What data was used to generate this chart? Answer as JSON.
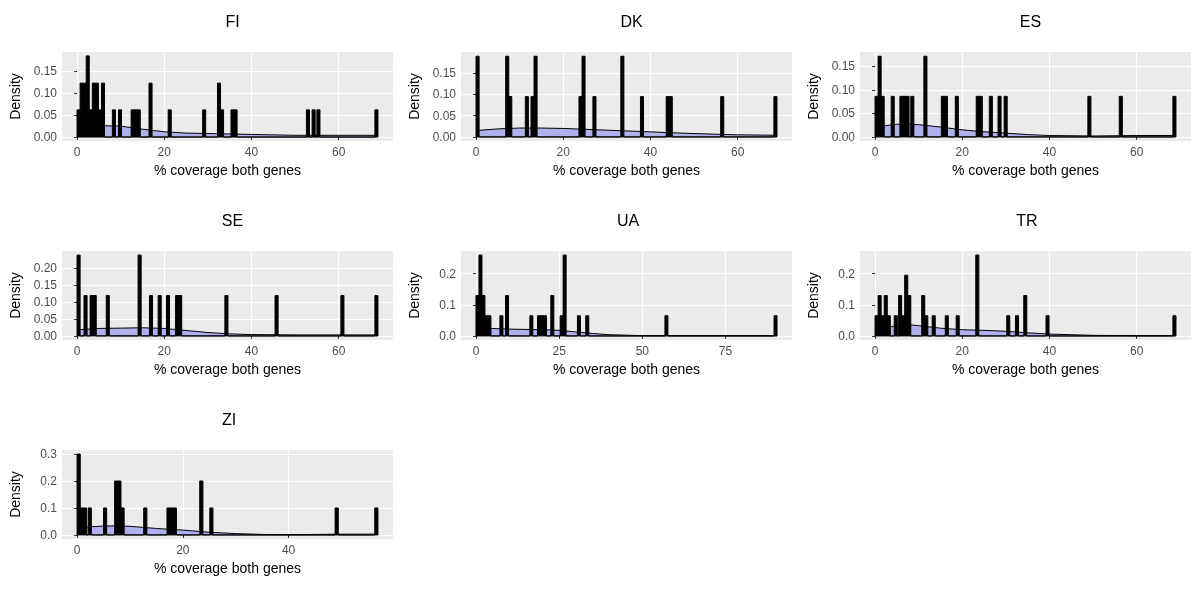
{
  "chart_data": [
    {
      "type": "histogram",
      "title": "FI",
      "xlabel": "% coverage both genes",
      "ylabel": "Density",
      "xlim": [
        -3.45,
        72.45
      ],
      "xticks": [
        0,
        20,
        40,
        60
      ],
      "ylim": [
        -0.009,
        0.194
      ],
      "yticks": [
        {
          "value": 0,
          "label": "0.00"
        },
        {
          "value": 0.05,
          "label": "0.05"
        },
        {
          "value": 0.1,
          "label": "0.10"
        },
        {
          "value": 0.15,
          "label": "0.15"
        }
      ],
      "grid": true,
      "series": [
        {
          "type": "area",
          "color": "#b0b0ec",
          "x": [
            0,
            5,
            10,
            15,
            20,
            25,
            30,
            40,
            50,
            60,
            69
          ],
          "values": [
            0.022,
            0.026,
            0.025,
            0.018,
            0.012,
            0.009,
            0.008,
            0.006,
            0.004,
            0.004,
            0.004
          ]
        },
        {
          "type": "histogram",
          "color": "#000000",
          "bins": [
            0,
            0.7,
            1.4,
            2.1,
            2.8,
            3.5,
            4.2,
            4.9,
            5.6,
            6.3,
            8.1,
            8.8,
            9.5,
            10.2,
            12.4,
            13.1,
            13.8,
            14.5,
            16.5,
            17.2,
            20.9,
            21.6,
            28.8,
            29.5,
            32.2,
            32.9,
            33.6,
            35.3,
            36,
            36.7,
            52.6,
            53.3,
            53.9,
            54.6,
            55,
            55.7,
            68.3,
            69
          ],
          "values": [
            0.062,
            0.123,
            0.123,
            0.185,
            0.062,
            0.123,
            0.123,
            0.062,
            0.123,
            0,
            0.062,
            0,
            0.062,
            0,
            0.062,
            0.062,
            0.062,
            0,
            0.123,
            0,
            0.062,
            0,
            0.062,
            0,
            0.123,
            0.062,
            0,
            0.062,
            0.062,
            0,
            0.062,
            0,
            0.062,
            0,
            0.062,
            0,
            0.062
          ]
        }
      ]
    },
    {
      "type": "histogram",
      "title": "DK",
      "xlabel": "% coverage both genes",
      "ylabel": "Density",
      "xlim": [
        -3.45,
        72.45
      ],
      "xticks": [
        0,
        20,
        40,
        60
      ],
      "ylim": [
        -0.0095,
        0.2
      ],
      "yticks": [
        {
          "value": 0,
          "label": "0.00"
        },
        {
          "value": 0.05,
          "label": "0.05"
        },
        {
          "value": 0.1,
          "label": "0.10"
        },
        {
          "value": 0.15,
          "label": "0.15"
        }
      ],
      "grid": true,
      "series": [
        {
          "type": "area",
          "color": "#b0b0ec",
          "x": [
            0,
            5,
            10,
            15,
            20,
            30,
            40,
            50,
            60,
            69
          ],
          "values": [
            0.015,
            0.019,
            0.021,
            0.021,
            0.02,
            0.016,
            0.012,
            0.008,
            0.005,
            0.004
          ]
        },
        {
          "type": "histogram",
          "color": "#000000",
          "bins": [
            0,
            0.7,
            6.8,
            7.5,
            8.2,
            11.3,
            12,
            12.6,
            13.3,
            14,
            23.6,
            24.3,
            25,
            26.8,
            27.5,
            33.2,
            33.9,
            37.7,
            38.4,
            43.6,
            44.3,
            45,
            56.1,
            56.8,
            68.3,
            69
          ],
          "values": [
            0.19,
            0,
            0.19,
            0.095,
            0,
            0.095,
            0,
            0.095,
            0.19,
            0,
            0.095,
            0.19,
            0,
            0.095,
            0,
            0.19,
            0,
            0.095,
            0,
            0.095,
            0.095,
            0,
            0.095,
            0,
            0.095
          ]
        }
      ]
    },
    {
      "type": "histogram",
      "title": "ES",
      "xlabel": "% coverage both genes",
      "ylabel": "Density",
      "xlim": [
        -3.45,
        72.45
      ],
      "xticks": [
        0,
        20,
        40,
        60
      ],
      "ylim": [
        -0.0086,
        0.18
      ],
      "yticks": [
        {
          "value": 0,
          "label": "0.00"
        },
        {
          "value": 0.05,
          "label": "0.05"
        },
        {
          "value": 0.1,
          "label": "0.10"
        },
        {
          "value": 0.15,
          "label": "0.15"
        }
      ],
      "grid": true,
      "series": [
        {
          "type": "area",
          "color": "#b0b0ec",
          "x": [
            0,
            5,
            8,
            10,
            15,
            20,
            25,
            30,
            35,
            40,
            50,
            60,
            69
          ],
          "values": [
            0.021,
            0.027,
            0.027,
            0.026,
            0.021,
            0.015,
            0.011,
            0.008,
            0.005,
            0.003,
            0.002,
            0.003,
            0.003
          ]
        },
        {
          "type": "histogram",
          "color": "#000000",
          "bins": [
            0,
            0.7,
            1.4,
            2.1,
            3.7,
            4.4,
            5.7,
            6.4,
            7.1,
            7.8,
            8.2,
            8.9,
            11.2,
            11.9,
            15.2,
            15.9,
            16.6,
            18.4,
            19.1,
            23.2,
            23.9,
            24.6,
            26.2,
            26.9,
            28.2,
            28.9,
            29.6,
            30.3,
            48.8,
            49.5,
            56,
            56.7,
            68.3,
            69
          ],
          "values": [
            0.086,
            0.171,
            0.086,
            0,
            0.086,
            0,
            0.086,
            0.086,
            0.086,
            0,
            0.086,
            0,
            0.171,
            0,
            0.086,
            0.086,
            0,
            0.086,
            0,
            0.086,
            0.086,
            0,
            0.086,
            0,
            0.086,
            0,
            0.086,
            0,
            0.086,
            0,
            0.086,
            0,
            0.086
          ]
        }
      ]
    },
    {
      "type": "histogram",
      "title": "SE",
      "xlabel": "% coverage both genes",
      "ylabel": "Density",
      "xlim": [
        -3.45,
        72.45
      ],
      "xticks": [
        0,
        20,
        40,
        60
      ],
      "ylim": [
        -0.012,
        0.25
      ],
      "yticks": [
        {
          "value": 0,
          "label": "0.00"
        },
        {
          "value": 0.05,
          "label": "0.05"
        },
        {
          "value": 0.1,
          "label": "0.10"
        },
        {
          "value": 0.15,
          "label": "0.15"
        },
        {
          "value": 0.2,
          "label": "0.20"
        }
      ],
      "grid": true,
      "series": [
        {
          "type": "area",
          "color": "#b0b0ec",
          "x": [
            0,
            5,
            10,
            15,
            20,
            25,
            30,
            35,
            40,
            50,
            60,
            69
          ],
          "values": [
            0.018,
            0.022,
            0.023,
            0.024,
            0.022,
            0.016,
            0.01,
            0.006,
            0.004,
            0.003,
            0.003,
            0.003
          ]
        },
        {
          "type": "histogram",
          "color": "#000000",
          "bins": [
            0,
            0.7,
            1.6,
            2.3,
            3,
            3.7,
            4.4,
            6.7,
            7.4,
            14,
            14.7,
            16.6,
            17.3,
            18.6,
            19.3,
            20.5,
            21.2,
            22.6,
            23.3,
            24,
            33.9,
            34.6,
            45.4,
            46.1,
            60.5,
            61.2,
            68.3,
            69
          ],
          "values": [
            0.238,
            0,
            0.119,
            0,
            0.119,
            0.119,
            0,
            0.119,
            0,
            0.238,
            0,
            0.119,
            0,
            0.119,
            0,
            0.119,
            0,
            0.119,
            0.119,
            0,
            0.119,
            0,
            0.119,
            0,
            0.119,
            0,
            0.119
          ]
        }
      ]
    },
    {
      "type": "histogram",
      "title": "UA",
      "xlabel": "% coverage both genes",
      "ylabel": "Density",
      "xlim": [
        -4.5,
        95
      ],
      "xticks": [
        0,
        25,
        50,
        75
      ],
      "ylim": [
        -0.013,
        0.273
      ],
      "yticks": [
        {
          "value": 0,
          "label": "0.0"
        },
        {
          "value": 0.1,
          "label": "0.1"
        },
        {
          "value": 0.2,
          "label": "0.2"
        }
      ],
      "grid": true,
      "series": [
        {
          "type": "area",
          "color": "#b0b0ec",
          "x": [
            0,
            5,
            10,
            20,
            25,
            30,
            35,
            40,
            50,
            60,
            75,
            90.5
          ],
          "values": [
            0.02,
            0.024,
            0.022,
            0.02,
            0.018,
            0.013,
            0.008,
            0.004,
            0.001,
            0.001,
            0.001,
            0.001
          ]
        },
        {
          "type": "histogram",
          "color": "#000000",
          "bins": [
            0,
            0.9,
            1.8,
            2.7,
            3.6,
            4.5,
            7.2,
            8.1,
            8.9,
            9.8,
            16.2,
            17.1,
            18.5,
            19.4,
            20.3,
            21.2,
            22.5,
            23.4,
            25.3,
            26.2,
            27.1,
            30.5,
            31.4,
            33,
            33.9,
            56.8,
            57.7,
            89.6,
            90.5
          ],
          "values": [
            0.13,
            0.26,
            0.13,
            0.065,
            0.065,
            0,
            0.065,
            0,
            0.13,
            0,
            0.065,
            0,
            0.065,
            0.065,
            0.065,
            0,
            0.13,
            0,
            0.065,
            0.26,
            0,
            0.065,
            0,
            0.065,
            0,
            0.065,
            0,
            0.065
          ]
        }
      ]
    },
    {
      "type": "histogram",
      "title": "TR",
      "xlabel": "% coverage both genes",
      "ylabel": "Density",
      "xlim": [
        -3.45,
        72.45
      ],
      "xticks": [
        0,
        20,
        40,
        60
      ],
      "ylim": [
        -0.013,
        0.273
      ],
      "yticks": [
        {
          "value": 0,
          "label": "0.0"
        },
        {
          "value": 0.1,
          "label": "0.1"
        },
        {
          "value": 0.2,
          "label": "0.2"
        }
      ],
      "grid": true,
      "series": [
        {
          "type": "area",
          "color": "#b0b0ec",
          "x": [
            0,
            5,
            7,
            10,
            15,
            20,
            25,
            30,
            35,
            40,
            50,
            60,
            69
          ],
          "values": [
            0.02,
            0.033,
            0.037,
            0.033,
            0.025,
            0.02,
            0.018,
            0.015,
            0.01,
            0.006,
            0.002,
            0.001,
            0.001
          ]
        },
        {
          "type": "histogram",
          "color": "#000000",
          "bins": [
            0,
            0.7,
            1.4,
            2.1,
            2.8,
            3.5,
            4.4,
            5.1,
            5.4,
            6.1,
            6.8,
            7.5,
            8.2,
            10.7,
            11.4,
            12.1,
            13.1,
            13.8,
            16.1,
            16.8,
            18.6,
            19.3,
            23.1,
            23.8,
            30.2,
            30.9,
            32.2,
            32.9,
            34.1,
            34.8,
            39.2,
            39.9,
            68.3,
            69
          ],
          "values": [
            0.065,
            0.13,
            0.065,
            0.13,
            0.065,
            0,
            0.065,
            0,
            0.13,
            0.065,
            0.195,
            0.13,
            0,
            0.13,
            0.065,
            0,
            0.065,
            0,
            0.065,
            0,
            0.065,
            0,
            0.26,
            0,
            0.065,
            0,
            0.065,
            0,
            0.13,
            0,
            0.065,
            0,
            0.065
          ]
        }
      ]
    },
    {
      "type": "histogram",
      "title": "ZI",
      "xlabel": "% coverage both genes",
      "ylabel": "Density",
      "xlim": [
        -2.85,
        59.75
      ],
      "xticks": [
        0,
        20,
        40
      ],
      "ylim": [
        -0.015,
        0.315
      ],
      "yticks": [
        {
          "value": 0,
          "label": "0.0"
        },
        {
          "value": 0.1,
          "label": "0.1"
        },
        {
          "value": 0.2,
          "label": "0.2"
        },
        {
          "value": 0.3,
          "label": "0.3"
        }
      ],
      "grid": true,
      "series": [
        {
          "type": "area",
          "color": "#b0b0ec",
          "x": [
            0,
            5,
            8,
            10,
            15,
            20,
            25,
            30,
            35,
            40,
            50,
            56.9
          ],
          "values": [
            0.028,
            0.033,
            0.034,
            0.032,
            0.024,
            0.018,
            0.01,
            0.005,
            0.002,
            0.001,
            0.003,
            0.003
          ]
        },
        {
          "type": "histogram",
          "color": "#000000",
          "bins": [
            0,
            0.6,
            1.2,
            1.8,
            2.1,
            2.7,
            5,
            5.6,
            7.1,
            7.7,
            8.3,
            8.9,
            12.6,
            13.2,
            17,
            17.6,
            18.2,
            18.8,
            23.2,
            23.8,
            25.1,
            25.7,
            48.8,
            49.4,
            56.3,
            56.9
          ],
          "values": [
            0.3,
            0.1,
            0.1,
            0,
            0.1,
            0,
            0.1,
            0,
            0.2,
            0.2,
            0.1,
            0,
            0.1,
            0,
            0.1,
            0.1,
            0.1,
            0,
            0.2,
            0,
            0.1,
            0,
            0.1,
            0,
            0.1
          ]
        }
      ]
    }
  ]
}
